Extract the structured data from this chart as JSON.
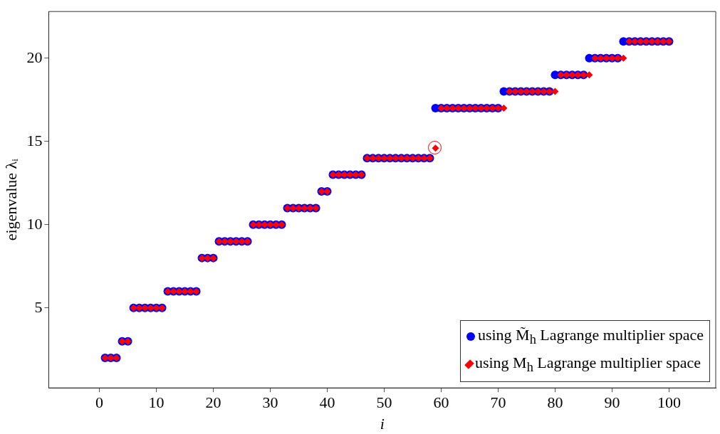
{
  "chart_data": {
    "type": "scatter",
    "xlabel": "i",
    "ylabel": "eigenvalue λᵢ",
    "xlim": [
      -8.9,
      108.2
    ],
    "ylim": [
      0.2,
      22.8
    ],
    "xticks": [
      0,
      10,
      20,
      30,
      40,
      50,
      60,
      70,
      80,
      90,
      100
    ],
    "yticks": [
      5,
      10,
      15,
      20
    ],
    "grid": false,
    "legend": "bottom right",
    "series": [
      {
        "name": "using M̃$_{h}$ Lagrange multiplier space",
        "color": "#0000ff",
        "marker": "circle",
        "x": [
          1,
          2,
          3,
          4,
          5,
          6,
          7,
          8,
          9,
          10,
          11,
          12,
          13,
          14,
          15,
          16,
          17,
          18,
          19,
          20,
          21,
          22,
          23,
          24,
          25,
          26,
          27,
          28,
          29,
          30,
          31,
          32,
          33,
          34,
          35,
          36,
          37,
          38,
          39,
          40,
          41,
          42,
          43,
          44,
          45,
          46,
          47,
          48,
          49,
          50,
          51,
          52,
          53,
          54,
          55,
          56,
          57,
          58,
          59,
          60,
          61,
          62,
          63,
          64,
          65,
          66,
          67,
          68,
          69,
          70,
          71,
          72,
          73,
          74,
          75,
          76,
          77,
          78,
          79,
          80,
          81,
          82,
          83,
          84,
          85,
          86,
          87,
          88,
          89,
          90,
          91,
          92,
          93,
          94,
          95,
          96,
          97,
          98,
          99,
          100
        ],
        "values": [
          2,
          2,
          2,
          3,
          3,
          5,
          5,
          5,
          5,
          5,
          5,
          6,
          6,
          6,
          6,
          6,
          6,
          8,
          8,
          8,
          9,
          9,
          9,
          9,
          9,
          9,
          10,
          10,
          10,
          10,
          10,
          10,
          11,
          11,
          11,
          11,
          11,
          11,
          12,
          12,
          13,
          13,
          13,
          13,
          13,
          13,
          14,
          14,
          14,
          14,
          14,
          14,
          14,
          14,
          14,
          14,
          14,
          14,
          17,
          17,
          17,
          17,
          17,
          17,
          17,
          17,
          17,
          17,
          17,
          17,
          18,
          18,
          18,
          18,
          18,
          18,
          18,
          18,
          18,
          19,
          19,
          19,
          19,
          19,
          19,
          20,
          20,
          20,
          20,
          20,
          20,
          21,
          21,
          21,
          21,
          21,
          21,
          21,
          21,
          21
        ]
      },
      {
        "name": "using M$_{h}$ Lagrange multiplier space",
        "color": "#ff0000",
        "marker": "diamond",
        "x": [
          1,
          2,
          3,
          4,
          5,
          6,
          7,
          8,
          9,
          10,
          11,
          12,
          13,
          14,
          15,
          16,
          17,
          18,
          19,
          20,
          21,
          22,
          23,
          24,
          25,
          26,
          27,
          28,
          29,
          30,
          31,
          32,
          33,
          34,
          35,
          36,
          37,
          38,
          39,
          40,
          41,
          42,
          43,
          44,
          45,
          46,
          47,
          48,
          49,
          50,
          51,
          52,
          53,
          54,
          55,
          56,
          57,
          58,
          59,
          60,
          61,
          62,
          63,
          64,
          65,
          66,
          67,
          68,
          69,
          70,
          71,
          72,
          73,
          74,
          75,
          76,
          77,
          78,
          79,
          80,
          81,
          82,
          83,
          84,
          85,
          86,
          87,
          88,
          89,
          90,
          91,
          92,
          93,
          94,
          95,
          96,
          97,
          98,
          99,
          100
        ],
        "values": [
          2,
          2,
          2,
          3,
          3,
          5,
          5,
          5,
          5,
          5,
          5,
          6,
          6,
          6,
          6,
          6,
          6,
          8,
          8,
          8,
          9,
          9,
          9,
          9,
          9,
          9,
          10,
          10,
          10,
          10,
          10,
          10,
          11,
          11,
          11,
          11,
          11,
          11,
          12,
          12,
          13,
          13,
          13,
          13,
          13,
          13,
          14,
          14,
          14,
          14,
          14,
          14,
          14,
          14,
          14,
          14,
          14,
          14,
          14.6,
          17,
          17,
          17,
          17,
          17,
          17,
          17,
          17,
          17,
          17,
          17,
          17,
          18,
          18,
          18,
          18,
          18,
          18,
          18,
          18,
          18,
          19,
          19,
          19,
          19,
          19,
          19,
          20,
          20,
          20,
          20,
          20,
          20,
          21,
          21,
          21,
          21,
          21,
          21,
          21,
          21
        ]
      }
    ]
  }
}
